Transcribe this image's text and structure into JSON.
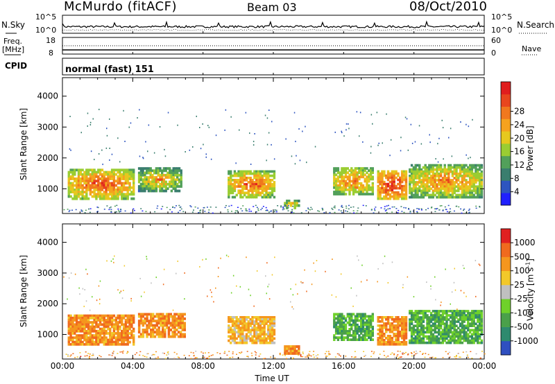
{
  "header": {
    "station": "McMurdo (fitACF)",
    "beam": "Beam 03",
    "date": "08/Oct/2010"
  },
  "noise_panel": {
    "left_label": "N.Sky",
    "right_label": "N.Search",
    "tick_labels": [
      "10^5",
      "10^0"
    ]
  },
  "freq_panel": {
    "left_label_1": "Freq.",
    "left_label_2": "[MHz]",
    "left_ticks": [
      "18",
      "8"
    ],
    "right_label": "Nave",
    "right_ticks": [
      "60",
      "0"
    ]
  },
  "cpid": {
    "label": "CPID",
    "value": "normal (fast) 151"
  },
  "chart_data": [
    {
      "type": "heatmap",
      "name": "power",
      "ylabel": "Slant Range [km]",
      "yticks": [
        1000,
        2000,
        3000,
        4000
      ],
      "ylim": [
        200,
        4600
      ],
      "xlim": [
        0,
        24
      ],
      "colorbar": {
        "label": "Power [dB]",
        "ticks": [
          "4",
          "8",
          "12",
          "16",
          "20",
          "24",
          "28"
        ],
        "colors": [
          "#2020ff",
          "#2e55c0",
          "#3a7e6e",
          "#52a05a",
          "#9acd32",
          "#e6c81e",
          "#f5a21e",
          "#f0781e",
          "#e8461e",
          "#e01e1e"
        ]
      },
      "echo_blocks": [
        {
          "t0": 0.3,
          "t1": 4.1,
          "r0": 650,
          "r1": 1650,
          "level": 0.55
        },
        {
          "t0": 4.3,
          "t1": 6.8,
          "r0": 900,
          "r1": 1700,
          "level": 0.25
        },
        {
          "t0": 9.4,
          "t1": 12.1,
          "r0": 700,
          "r1": 1600,
          "level": 0.5
        },
        {
          "t0": 15.4,
          "t1": 17.7,
          "r0": 800,
          "r1": 1700,
          "level": 0.45
        },
        {
          "t0": 17.9,
          "t1": 19.6,
          "r0": 650,
          "r1": 1600,
          "level": 0.75
        },
        {
          "t0": 19.7,
          "t1": 23.9,
          "r0": 700,
          "r1": 1800,
          "level": 0.4
        },
        {
          "t0": 12.6,
          "t1": 13.5,
          "r0": 350,
          "r1": 650,
          "level": 0.25
        }
      ]
    },
    {
      "type": "heatmap",
      "name": "velocity",
      "ylabel": "Slant Range [km]",
      "xlabel": "Time UT",
      "xticks": [
        "00:00",
        "04:00",
        "08:00",
        "12:00",
        "16:00",
        "20:00",
        "00:00"
      ],
      "yticks": [
        1000,
        2000,
        3000,
        4000
      ],
      "ylim": [
        200,
        4600
      ],
      "xlim": [
        0,
        24
      ],
      "colorbar": {
        "label": "Velocity [m s^-1]",
        "ticks": [
          "1000",
          "500",
          "100",
          "25",
          "-25",
          "-100",
          "-500",
          "-1000"
        ],
        "colors": [
          "#2f4fc0",
          "#2e8a6e",
          "#4aa04a",
          "#6fd12a",
          "#c0c0c0",
          "#f2c82a",
          "#f5961e",
          "#f06a1e",
          "#e02020"
        ]
      },
      "echo_blocks": [
        {
          "t0": 0.3,
          "t1": 4.1,
          "r0": 650,
          "r1": 1650,
          "level": 0.75
        },
        {
          "t0": 4.3,
          "t1": 7.0,
          "r0": 900,
          "r1": 1700,
          "level": 0.75
        },
        {
          "t0": 9.4,
          "t1": 12.1,
          "r0": 700,
          "r1": 1600,
          "level": 0.65
        },
        {
          "t0": 15.4,
          "t1": 17.7,
          "r0": 800,
          "r1": 1700,
          "level": 0.3
        },
        {
          "t0": 17.9,
          "t1": 19.6,
          "r0": 650,
          "r1": 1600,
          "level": 0.75
        },
        {
          "t0": 19.7,
          "t1": 23.9,
          "r0": 700,
          "r1": 1800,
          "level": 0.3
        },
        {
          "t0": 12.6,
          "t1": 13.5,
          "r0": 350,
          "r1": 650,
          "level": 0.75
        }
      ]
    }
  ]
}
